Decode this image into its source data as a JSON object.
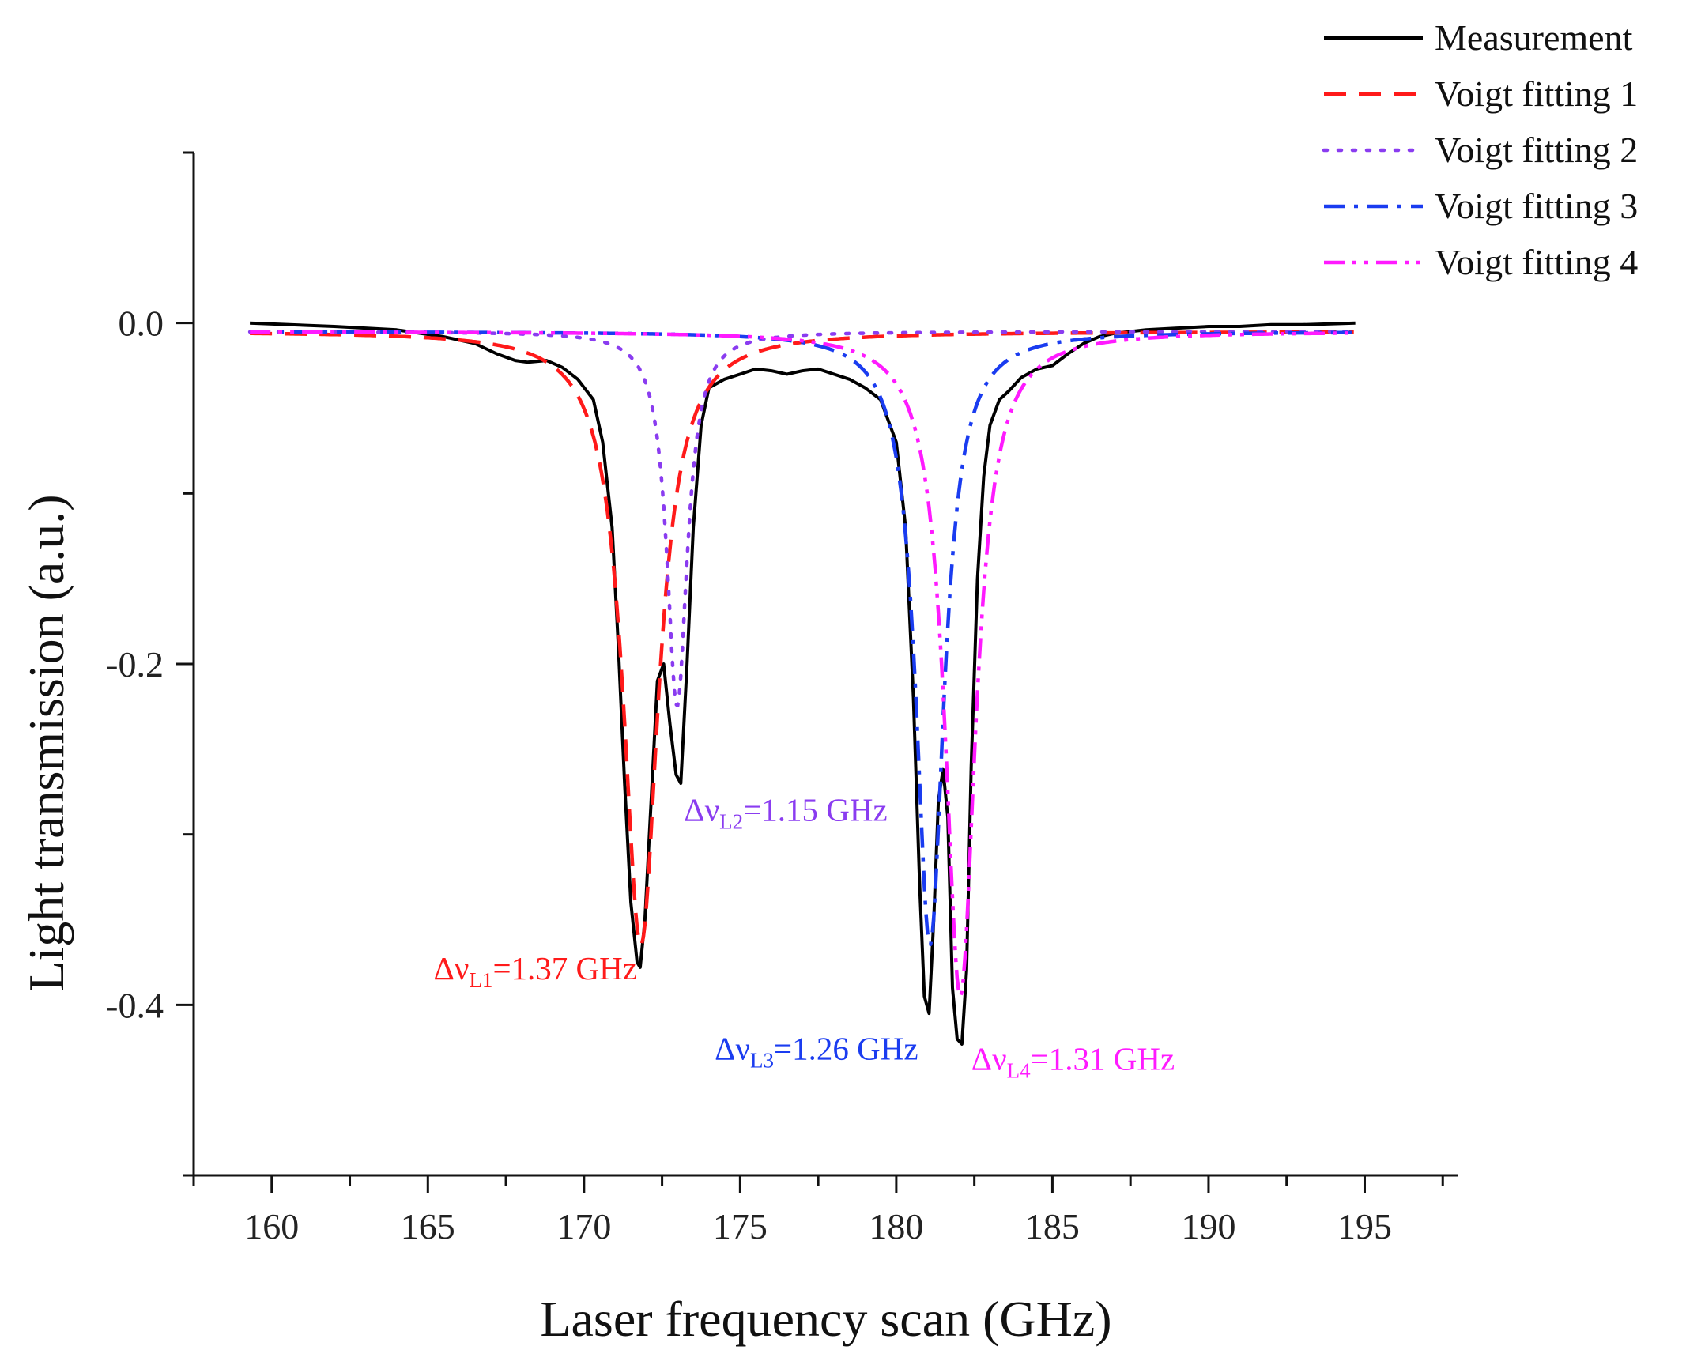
{
  "chart_data": {
    "type": "line",
    "title": "",
    "xlabel": "Laser frequency scan (GHz)",
    "ylabel": "Light transmission (a.u.)",
    "xlim": [
      157.5,
      198
    ],
    "ylim": [
      -0.5,
      0.1
    ],
    "x_ticks": [
      160,
      165,
      170,
      175,
      180,
      185,
      190,
      195
    ],
    "x_tick_labels": [
      "160",
      "165",
      "170",
      "175",
      "180",
      "185",
      "190",
      "195"
    ],
    "y_ticks": [
      0.0,
      -0.2,
      -0.4
    ],
    "y_tick_labels": [
      "0.0",
      "-0.2",
      "-0.4"
    ],
    "grid": false,
    "legend_position": "top-right",
    "series": [
      {
        "name": "Measurement",
        "color": "#000000",
        "style": "solid",
        "x": [
          159.3,
          162,
          164,
          165.5,
          166.5,
          167.2,
          167.8,
          168.2,
          168.8,
          169.3,
          169.8,
          170.3,
          170.6,
          170.9,
          171.1,
          171.3,
          171.5,
          171.7,
          171.8,
          171.95,
          172.15,
          172.35,
          172.55,
          172.75,
          172.95,
          173.1,
          173.3,
          173.5,
          173.75,
          174.0,
          174.5,
          175.0,
          175.5,
          176.0,
          176.5,
          177.0,
          177.5,
          178.0,
          178.5,
          179.0,
          179.5,
          180.0,
          180.3,
          180.55,
          180.75,
          180.9,
          181.05,
          181.2,
          181.35,
          181.5,
          181.65,
          181.8,
          181.95,
          182.1,
          182.25,
          182.4,
          182.6,
          182.8,
          183.0,
          183.3,
          183.6,
          184.0,
          184.5,
          185.0,
          185.5,
          186.0,
          186.5,
          187.0,
          188.0,
          189.0,
          190.0,
          191.0,
          192.0,
          193.0,
          194.7
        ],
        "y": [
          0.0,
          -0.002,
          -0.004,
          -0.008,
          -0.012,
          -0.018,
          -0.022,
          -0.023,
          -0.022,
          -0.026,
          -0.033,
          -0.045,
          -0.07,
          -0.12,
          -0.19,
          -0.27,
          -0.34,
          -0.375,
          -0.378,
          -0.35,
          -0.28,
          -0.21,
          -0.2,
          -0.235,
          -0.265,
          -0.27,
          -0.2,
          -0.12,
          -0.06,
          -0.038,
          -0.033,
          -0.03,
          -0.027,
          -0.028,
          -0.03,
          -0.028,
          -0.027,
          -0.03,
          -0.033,
          -0.038,
          -0.045,
          -0.07,
          -0.12,
          -0.22,
          -0.33,
          -0.395,
          -0.405,
          -0.35,
          -0.28,
          -0.262,
          -0.29,
          -0.39,
          -0.42,
          -0.423,
          -0.38,
          -0.26,
          -0.15,
          -0.09,
          -0.06,
          -0.045,
          -0.04,
          -0.032,
          -0.027,
          -0.025,
          -0.018,
          -0.012,
          -0.008,
          -0.006,
          -0.004,
          -0.003,
          -0.002,
          -0.002,
          -0.001,
          -0.001,
          0.0
        ]
      },
      {
        "name": "Voigt fitting 1",
        "color": "#ff1a1a",
        "style": "dashed",
        "center": 171.82,
        "depth": 0.36,
        "gamma": 0.69
      },
      {
        "name": "Voigt fitting 2",
        "color": "#8a3cf0",
        "style": "dotted",
        "center": 172.98,
        "depth": 0.22,
        "gamma": 0.4
      },
      {
        "name": "Voigt fitting 3",
        "color": "#1a3cf0",
        "style": "dash-dot",
        "center": 181.08,
        "depth": 0.36,
        "gamma": 0.55
      },
      {
        "name": "Voigt fitting 4",
        "color": "#ff1aff",
        "style": "dash-dot-dot",
        "center": 182.05,
        "depth": 0.39,
        "gamma": 0.6
      }
    ],
    "baseline_offset": -0.005,
    "annotations": [
      {
        "id": "a1",
        "prefix": "Δν",
        "sub": "L1",
        "suffix": "=1.37 GHz",
        "color": "#ff1a1a",
        "x": 171.7,
        "y": -0.385,
        "anchor": "end"
      },
      {
        "id": "a2",
        "prefix": "Δν",
        "sub": "L2",
        "suffix": "=1.15 GHz",
        "color": "#8a3cf0",
        "x": 173.2,
        "y": -0.292,
        "anchor": "start"
      },
      {
        "id": "a3",
        "prefix": "Δν",
        "sub": "L3",
        "suffix": "=1.26 GHz",
        "color": "#1a3cf0",
        "x": 180.7,
        "y": -0.432,
        "anchor": "end"
      },
      {
        "id": "a4",
        "prefix": "Δν",
        "sub": "L4",
        "suffix": "=1.31 GHz",
        "color": "#ff1aff",
        "x": 182.4,
        "y": -0.438,
        "anchor": "start"
      }
    ]
  }
}
